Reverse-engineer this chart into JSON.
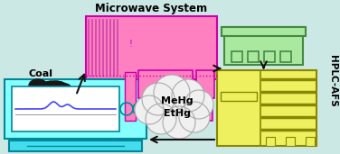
{
  "bg_color": "#cce8e4",
  "title": "Microwave System",
  "label_coal": "Coal",
  "label_hplc": "HPLC-AFS",
  "label_mehg": "MeHg",
  "label_ethg": "EtHg",
  "microwave_color": "#ff80c0",
  "microwave_border": "#cc00aa",
  "microwave_inner": "#cc44aa",
  "hplc_top_color": "#aae8a0",
  "hplc_top_border": "#448844",
  "hplc_bottom_color": "#eef060",
  "hplc_bottom_border": "#888800",
  "computer_color": "#88ffff",
  "computer_border": "#008898",
  "computer_base_color": "#44ddee",
  "computer_screen_bg": "#ffffff",
  "coal_color": "#181818",
  "cloud_color": "#f0f0f0",
  "cloud_border": "#aaaaaa",
  "arrow_color": "#111111",
  "wave_color": "#4444ff"
}
